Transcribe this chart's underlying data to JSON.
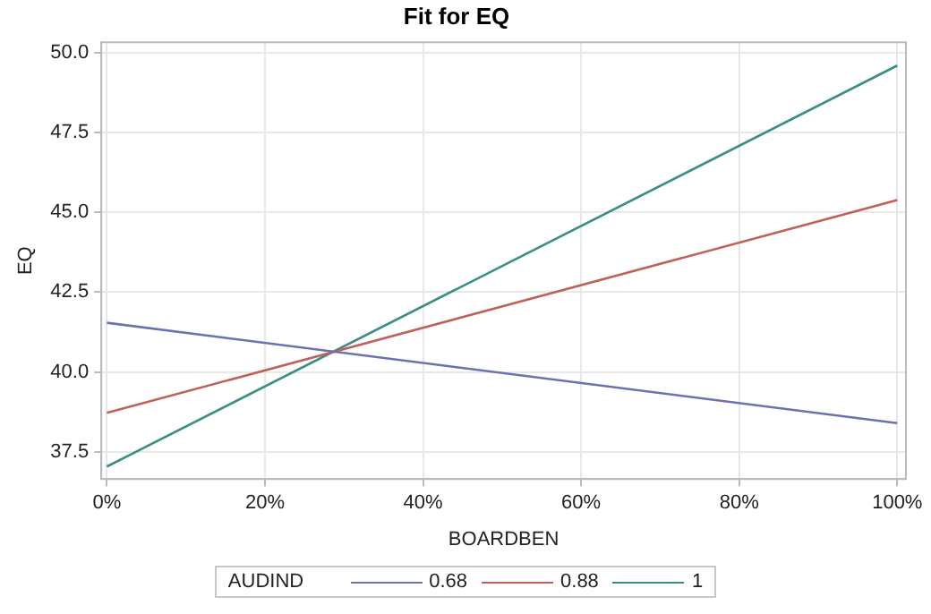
{
  "chart_data": {
    "type": "line",
    "title": "Fit for EQ",
    "xlabel": "BOARDBEN",
    "ylabel": "EQ",
    "legend_title": "AUDIND",
    "x": [
      0,
      100
    ],
    "series": [
      {
        "name": "0.68",
        "color": "#6a72b0",
        "values": [
          41.54,
          38.4
        ]
      },
      {
        "name": "0.88",
        "color": "#c0605a",
        "values": [
          38.72,
          45.38
        ]
      },
      {
        "name": "1",
        "color": "#3a8e84",
        "values": [
          37.04,
          49.59
        ]
      }
    ],
    "xlim": [
      -0.7,
      101.1
    ],
    "xticks": [
      {
        "value": 0,
        "label": "0%"
      },
      {
        "value": 20,
        "label": "20%"
      },
      {
        "value": 40,
        "label": "40%"
      },
      {
        "value": 60,
        "label": "60%"
      },
      {
        "value": 80,
        "label": "80%"
      },
      {
        "value": 100,
        "label": "100%"
      }
    ],
    "ylim": [
      36.65,
      50.32
    ],
    "yticks": [
      {
        "value": 37.5,
        "label": "37.5"
      },
      {
        "value": 40,
        "label": "40.0"
      },
      {
        "value": 42.5,
        "label": "42.5"
      },
      {
        "value": 45,
        "label": "45.0"
      },
      {
        "value": 47.5,
        "label": "47.5"
      },
      {
        "value": 50,
        "label": "50.0"
      }
    ],
    "grid": true,
    "legend": "bottom",
    "marker": "none",
    "line_style": "solid"
  }
}
